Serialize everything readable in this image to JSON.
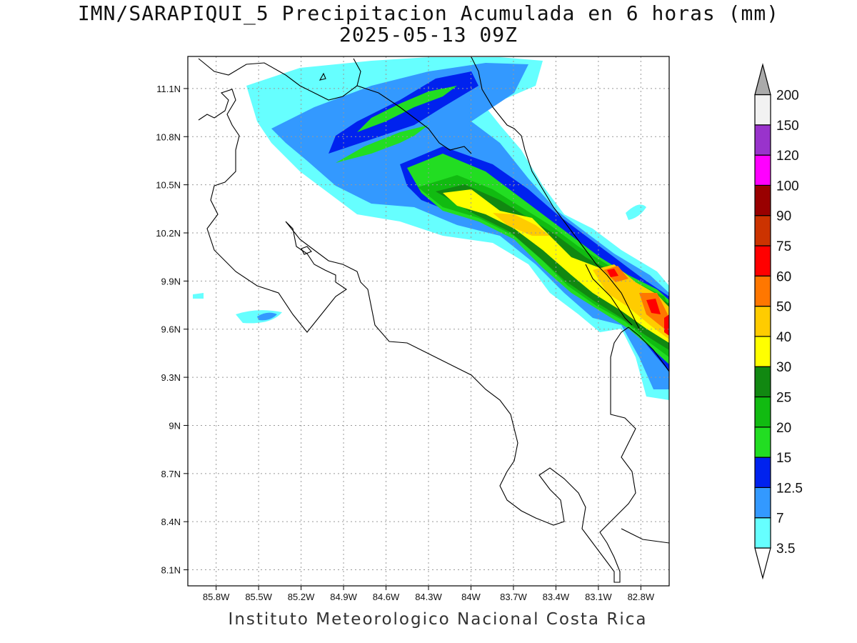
{
  "title": {
    "line1": "IMN/SARAPIQUI_5 Precipitacion Acumulada en 6 horas (mm)",
    "line2": "2025-05-13 09Z"
  },
  "footer": "Instituto Meteorologico Nacional Costa Rica",
  "map": {
    "lon_range": [
      -86.0,
      -82.6
    ],
    "lat_range": [
      8.0,
      11.3
    ],
    "lon_ticks": [
      "85.8W",
      "85.5W",
      "85.2W",
      "84.9W",
      "84.6W",
      "84.3W",
      "84W",
      "83.7W",
      "83.4W",
      "83.1W",
      "82.8W"
    ],
    "lat_ticks": [
      "11.1N",
      "10.8N",
      "10.5N",
      "10.2N",
      "9.9N",
      "9.6N",
      "9.3N",
      "9N",
      "8.7N",
      "8.4N",
      "8.1N"
    ]
  },
  "colorbar": {
    "labels": [
      "3.5",
      "7",
      "12.5",
      "15",
      "20",
      "25",
      "30",
      "40",
      "50",
      "60",
      "75",
      "90",
      "100",
      "120",
      "150",
      "200"
    ],
    "colors": [
      "#66ffff",
      "#3399ff",
      "#0022ee",
      "#22dd22",
      "#11bb11",
      "#118811",
      "#ffff00",
      "#ffcc00",
      "#ff7700",
      "#ff0000",
      "#cc3300",
      "#990000",
      "#ff00ff",
      "#9933cc",
      "#f2f2f2",
      "#aaaaaa"
    ]
  }
}
